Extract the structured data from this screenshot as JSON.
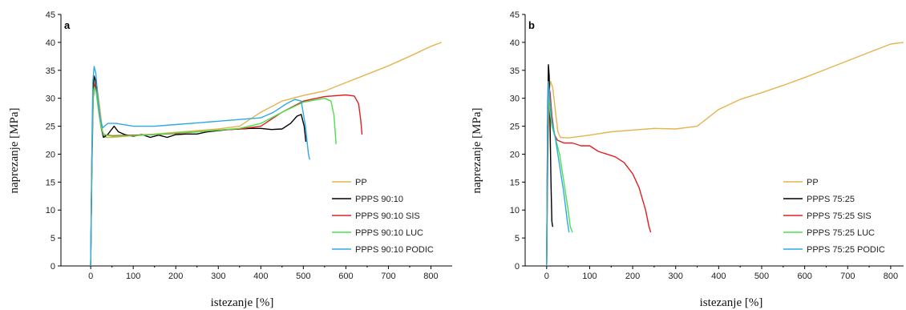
{
  "chart_data": [
    {
      "type": "line",
      "panel_label": "a",
      "xlabel": "istezanje [%]",
      "ylabel": "naprezanje [MPa]",
      "xlim": [
        -70,
        850
      ],
      "ylim": [
        0,
        45
      ],
      "xticks": [
        0,
        100,
        200,
        300,
        400,
        500,
        600,
        700,
        800
      ],
      "yticks": [
        0,
        5,
        10,
        15,
        20,
        25,
        30,
        35,
        40,
        45
      ],
      "legend_position": "bottom-right",
      "series": [
        {
          "name": "PP",
          "color": "#e6b34d",
          "points": [
            [
              0,
              0
            ],
            [
              3,
              20
            ],
            [
              6,
              31
            ],
            [
              10,
              33
            ],
            [
              15,
              32
            ],
            [
              22,
              28
            ],
            [
              28,
              24
            ],
            [
              35,
              23
            ],
            [
              50,
              23
            ],
            [
              100,
              23.3
            ],
            [
              150,
              23.6
            ],
            [
              200,
              23.9
            ],
            [
              250,
              24.2
            ],
            [
              300,
              24.5
            ],
            [
              350,
              25
            ],
            [
              400,
              27.5
            ],
            [
              450,
              29.5
            ],
            [
              500,
              30.5
            ],
            [
              550,
              31.3
            ],
            [
              600,
              32.8
            ],
            [
              650,
              34.3
            ],
            [
              700,
              35.8
            ],
            [
              750,
              37.5
            ],
            [
              800,
              39.3
            ],
            [
              825,
              40
            ]
          ]
        },
        {
          "name": "PPPS 90:10",
          "color": "#000000",
          "points": [
            [
              0,
              0
            ],
            [
              3,
              20
            ],
            [
              5,
              30
            ],
            [
              8,
              34
            ],
            [
              12,
              33
            ],
            [
              18,
              29
            ],
            [
              24,
              25
            ],
            [
              30,
              23
            ],
            [
              40,
              23.5
            ],
            [
              55,
              25
            ],
            [
              65,
              24
            ],
            [
              80,
              23.5
            ],
            [
              100,
              23.2
            ],
            [
              120,
              23.5
            ],
            [
              140,
              23
            ],
            [
              160,
              23.4
            ],
            [
              180,
              23
            ],
            [
              200,
              23.5
            ],
            [
              225,
              23.6
            ],
            [
              250,
              23.6
            ],
            [
              275,
              24
            ],
            [
              300,
              24.2
            ],
            [
              325,
              24.4
            ],
            [
              350,
              24.5
            ],
            [
              375,
              24.6
            ],
            [
              400,
              24.6
            ],
            [
              425,
              24.4
            ],
            [
              450,
              24.5
            ],
            [
              470,
              25.5
            ],
            [
              485,
              26.8
            ],
            [
              495,
              27.1
            ],
            [
              502,
              25
            ],
            [
              506,
              22.2
            ]
          ]
        },
        {
          "name": "PPPS 90:10 SIS",
          "color": "#e02020",
          "points": [
            [
              0,
              0
            ],
            [
              3,
              18
            ],
            [
              6,
              30
            ],
            [
              9,
              32.5
            ],
            [
              13,
              31.5
            ],
            [
              18,
              28
            ],
            [
              24,
              25
            ],
            [
              30,
              23.5
            ],
            [
              50,
              23.3
            ],
            [
              100,
              23.4
            ],
            [
              150,
              23.5
            ],
            [
              200,
              23.7
            ],
            [
              250,
              24
            ],
            [
              300,
              24.3
            ],
            [
              350,
              24.5
            ],
            [
              400,
              25
            ],
            [
              450,
              27.5
            ],
            [
              500,
              29.5
            ],
            [
              550,
              30.3
            ],
            [
              600,
              30.6
            ],
            [
              620,
              30.4
            ],
            [
              630,
              29
            ],
            [
              635,
              26
            ],
            [
              638,
              23.5
            ]
          ]
        },
        {
          "name": "PPPS 90:10 LUC",
          "color": "#4ce04c",
          "points": [
            [
              0,
              0
            ],
            [
              3,
              20
            ],
            [
              6,
              31
            ],
            [
              9,
              32
            ],
            [
              13,
              31
            ],
            [
              18,
              28
            ],
            [
              24,
              25
            ],
            [
              30,
              23.5
            ],
            [
              50,
              23.2
            ],
            [
              100,
              23.3
            ],
            [
              150,
              23.5
            ],
            [
              200,
              23.8
            ],
            [
              250,
              24
            ],
            [
              300,
              24.3
            ],
            [
              350,
              24.6
            ],
            [
              400,
              25.5
            ],
            [
              450,
              27.5
            ],
            [
              500,
              29.3
            ],
            [
              550,
              30
            ],
            [
              565,
              29.5
            ],
            [
              572,
              27
            ],
            [
              577,
              21.8
            ]
          ]
        },
        {
          "name": "PPPS 90:10 PODIC",
          "color": "#2ea8e6",
          "points": [
            [
              0,
              0
            ],
            [
              3,
              22
            ],
            [
              5,
              33
            ],
            [
              8,
              35.7
            ],
            [
              12,
              34.5
            ],
            [
              17,
              30
            ],
            [
              22,
              26.5
            ],
            [
              28,
              24.7
            ],
            [
              40,
              25.5
            ],
            [
              60,
              25.5
            ],
            [
              100,
              25
            ],
            [
              150,
              25
            ],
            [
              200,
              25.3
            ],
            [
              250,
              25.6
            ],
            [
              300,
              25.9
            ],
            [
              350,
              26.2
            ],
            [
              400,
              26.5
            ],
            [
              430,
              27.5
            ],
            [
              460,
              29
            ],
            [
              480,
              29.8
            ],
            [
              495,
              29.5
            ],
            [
              505,
              25
            ],
            [
              512,
              20
            ],
            [
              515,
              19
            ]
          ]
        }
      ]
    },
    {
      "type": "line",
      "panel_label": "b",
      "xlabel": "istezanje [%]",
      "ylabel": "naprezanje [MPa]",
      "xlim": [
        -50,
        830
      ],
      "ylim": [
        0,
        45
      ],
      "xticks": [
        0,
        100,
        200,
        300,
        400,
        500,
        600,
        700,
        800
      ],
      "yticks": [
        0,
        5,
        10,
        15,
        20,
        25,
        30,
        35,
        40,
        45
      ],
      "legend_position": "bottom-right",
      "series": [
        {
          "name": "PP",
          "color": "#e6b34d",
          "points": [
            [
              0,
              0
            ],
            [
              3,
              20
            ],
            [
              6,
              31
            ],
            [
              9,
              33
            ],
            [
              14,
              32
            ],
            [
              20,
              28
            ],
            [
              26,
              24
            ],
            [
              32,
              23
            ],
            [
              50,
              22.9
            ],
            [
              100,
              23.4
            ],
            [
              150,
              24
            ],
            [
              200,
              24.3
            ],
            [
              250,
              24.6
            ],
            [
              300,
              24.5
            ],
            [
              350,
              25
            ],
            [
              375,
              26.5
            ],
            [
              400,
              28
            ],
            [
              450,
              29.8
            ],
            [
              500,
              31
            ],
            [
              550,
              32.3
            ],
            [
              600,
              33.7
            ],
            [
              650,
              35.2
            ],
            [
              700,
              36.7
            ],
            [
              750,
              38.2
            ],
            [
              800,
              39.7
            ],
            [
              830,
              40
            ]
          ]
        },
        {
          "name": "PPPS 75:25",
          "color": "#000000",
          "points": [
            [
              0,
              0
            ],
            [
              2,
              25
            ],
            [
              4,
              36
            ],
            [
              6,
              34
            ],
            [
              8,
              25
            ],
            [
              10,
              15
            ],
            [
              12,
              8
            ],
            [
              14,
              7
            ]
          ]
        },
        {
          "name": "PPPS 75:25 SIS",
          "color": "#e02020",
          "points": [
            [
              0,
              0
            ],
            [
              3,
              22
            ],
            [
              5,
              32
            ],
            [
              8,
              31
            ],
            [
              12,
              27
            ],
            [
              18,
              23.5
            ],
            [
              25,
              22.5
            ],
            [
              40,
              22
            ],
            [
              60,
              22
            ],
            [
              80,
              21.5
            ],
            [
              100,
              21.5
            ],
            [
              120,
              20.5
            ],
            [
              140,
              20
            ],
            [
              160,
              19.5
            ],
            [
              180,
              18.5
            ],
            [
              200,
              16.5
            ],
            [
              215,
              14
            ],
            [
              230,
              10
            ],
            [
              238,
              7
            ],
            [
              242,
              6
            ]
          ]
        },
        {
          "name": "PPPS 75:25 LUC",
          "color": "#4ce04c",
          "points": [
            [
              0,
              0
            ],
            [
              2,
              22
            ],
            [
              4,
              31
            ],
            [
              7,
              28
            ],
            [
              12,
              25
            ],
            [
              20,
              23
            ],
            [
              30,
              20
            ],
            [
              40,
              15
            ],
            [
              50,
              10
            ],
            [
              55,
              7
            ],
            [
              60,
              6
            ]
          ]
        },
        {
          "name": "PPPS 75:25 PODIC",
          "color": "#2ea8e6",
          "points": [
            [
              0,
              0
            ],
            [
              2,
              22
            ],
            [
              4,
              33
            ],
            [
              7,
              30
            ],
            [
              12,
              26
            ],
            [
              20,
              23
            ],
            [
              30,
              18
            ],
            [
              40,
              13
            ],
            [
              48,
              8
            ],
            [
              52,
              6
            ]
          ]
        }
      ]
    }
  ]
}
